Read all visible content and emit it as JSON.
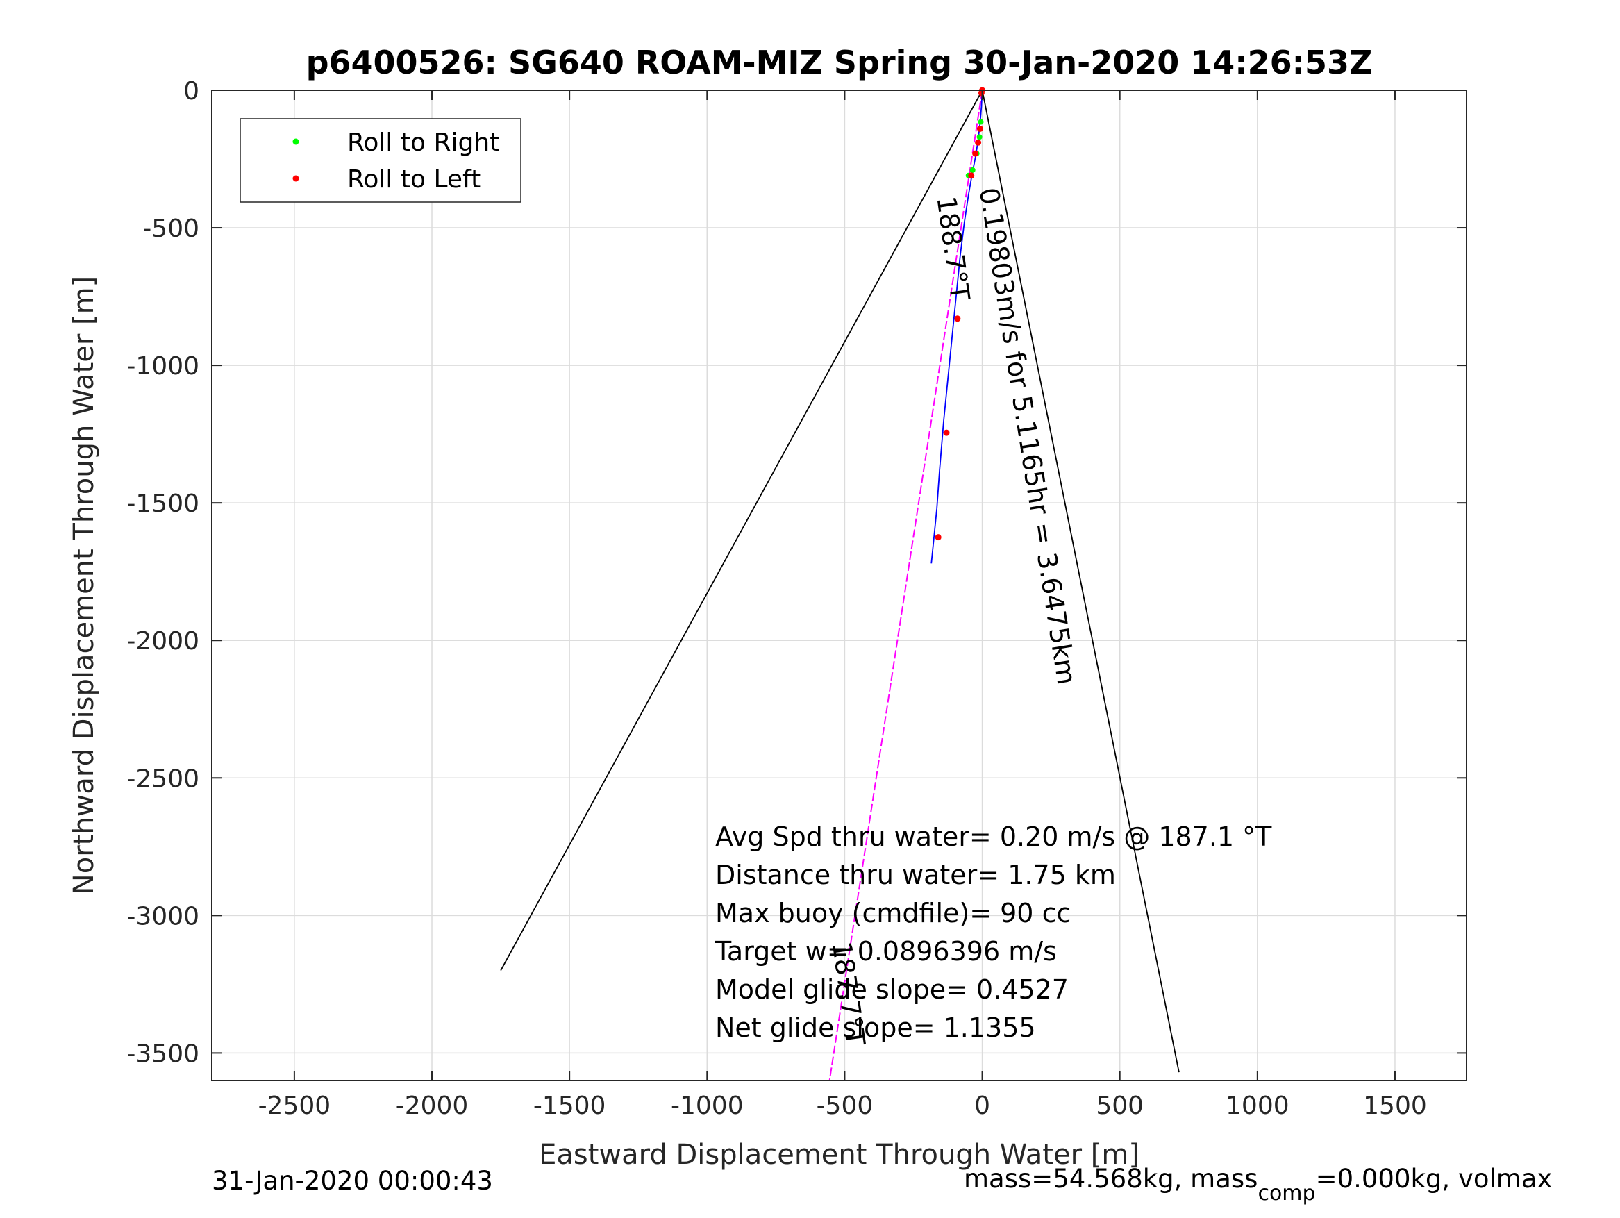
{
  "chart_data": {
    "type": "scatter",
    "title": "p6400526: SG640 ROAM-MIZ Spring 30-Jan-2020 14:26:53Z",
    "xlabel": "Eastward Displacement Through Water [m]",
    "ylabel": "Northward Displacement Through Water [m]",
    "xlim": [
      -2800,
      1760
    ],
    "ylim": [
      -3600,
      0
    ],
    "xticks": [
      -2500,
      -2000,
      -1500,
      -1000,
      -500,
      0,
      500,
      1000,
      1500
    ],
    "yticks": [
      0,
      -500,
      -1000,
      -1500,
      -2000,
      -2500,
      -3000,
      -3500
    ],
    "grid": true,
    "legend": {
      "placement": "top-left",
      "entries": [
        {
          "label": "Roll to Right",
          "color": "#00ff00"
        },
        {
          "label": "Roll to Left",
          "color": "#ff0000"
        }
      ]
    },
    "cone_lines": [
      {
        "x": [
          0,
          -1750
        ],
        "y": [
          0,
          -3200
        ],
        "color": "#000000"
      },
      {
        "x": [
          0,
          715
        ],
        "y": [
          0,
          -3570
        ],
        "color": "#000000"
      }
    ],
    "heading_line": {
      "x": [
        0,
        -555
      ],
      "y": [
        0,
        -3600
      ],
      "color": "#ff00ff"
    },
    "track": {
      "color": "#0000ff",
      "x": [
        0,
        -3,
        -8,
        -15,
        -24,
        -36,
        -50,
        -65,
        -80,
        -95,
        -110,
        -125,
        -140,
        -155,
        -165,
        -175,
        -185
      ],
      "y": [
        0,
        -60,
        -120,
        -180,
        -240,
        -300,
        -380,
        -480,
        -600,
        -750,
        -900,
        -1050,
        -1200,
        -1380,
        -1520,
        -1620,
        -1720
      ]
    },
    "roll_right": {
      "x": [
        -2,
        -5,
        -10,
        -20,
        -35,
        -50
      ],
      "y": [
        -10,
        -115,
        -170,
        -230,
        -290,
        -310
      ]
    },
    "roll_left": {
      "x": [
        0,
        -3,
        -8,
        -15,
        -25,
        -40,
        -90,
        -130,
        -160
      ],
      "y": [
        0,
        -10,
        -140,
        -190,
        -230,
        -310,
        -830,
        -1245,
        -1625
      ]
    },
    "rotated_labels": [
      {
        "text": "188.7°T",
        "x": -165,
        "y": -390,
        "rotate": 82,
        "color": "#000000"
      },
      {
        "text": "0.19803m/s for 5.1165hr = 3.6475km",
        "x": -10,
        "y": -360,
        "rotate": 81,
        "color": "#000000"
      },
      {
        "text": "187.7°T",
        "x": -545,
        "y": -3100,
        "rotate": 82,
        "color": "#000000"
      }
    ],
    "annotations": [
      "Avg Spd thru water=  0.20 m/s @ 187.1 °T",
      "Distance thru water=  1.75 km",
      "Max buoy (cmdfile)= 90 cc",
      "Target w= 0.0896396 m/s",
      "Model glide slope= 0.4527",
      "Net glide slope= 1.1355"
    ],
    "footer_left": "31-Jan-2020 00:00:43",
    "footer_right": {
      "prefix": "mass=54.568kg, mass",
      "subscript": "comp",
      "suffix": "=0.000kg, volmax"
    }
  }
}
